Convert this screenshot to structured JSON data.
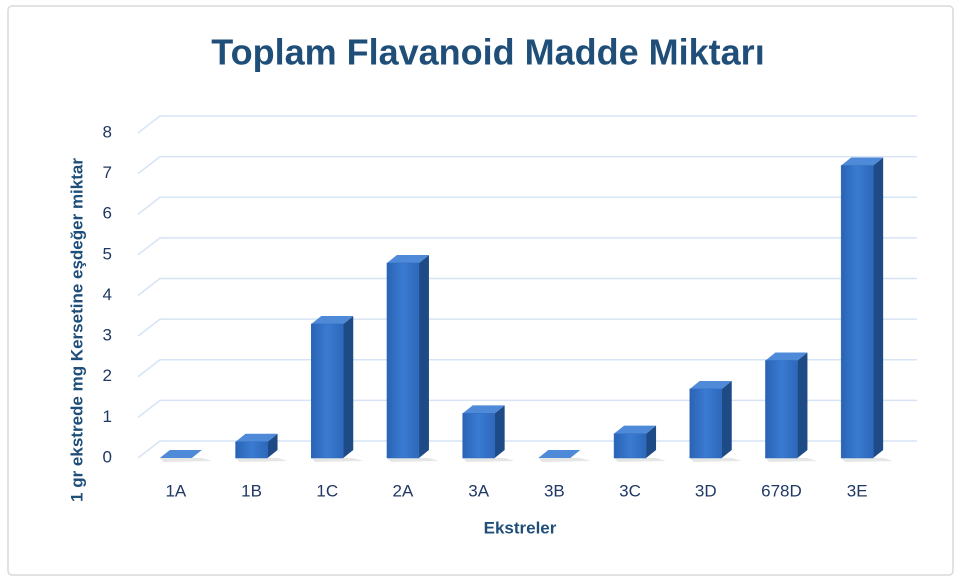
{
  "chart_data": {
    "type": "bar",
    "title": "Toplam Flavanoid Madde Miktarı",
    "x_label": "Ekstreler",
    "y_label": "1 gr ekstrede mg Kersetine eşdeğer miktar",
    "categories": [
      "1A",
      "1B",
      "1C",
      "2A",
      "3A",
      "3B",
      "3C",
      "3D",
      "678D",
      "3E"
    ],
    "values": [
      0,
      0.4,
      3.3,
      4.8,
      1.1,
      0,
      0.6,
      1.7,
      2.4,
      7.2
    ],
    "color": "#2f6cc0",
    "ylim": [
      0,
      8
    ],
    "yticks": [
      0,
      1,
      2,
      3,
      4,
      5,
      6,
      7,
      8
    ],
    "grid": true
  }
}
